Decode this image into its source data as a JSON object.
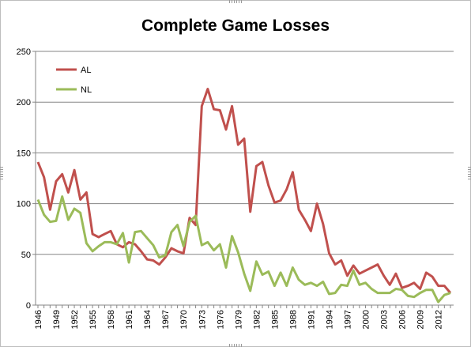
{
  "chart_data": {
    "type": "line",
    "title": "Complete Game Losses",
    "xlabel": "",
    "ylabel": "",
    "ylim": [
      0,
      250
    ],
    "yticks": [
      0,
      50,
      100,
      150,
      200,
      250
    ],
    "grid": true,
    "legend_position": "top-left",
    "x_start": 1946,
    "x_end": 2014,
    "x_tick_labels": [
      "1946",
      "1949",
      "1952",
      "1955",
      "1958",
      "1961",
      "1964",
      "1967",
      "1970",
      "1973",
      "1976",
      "1979",
      "1982",
      "1985",
      "1988",
      "1991",
      "1994",
      "1997",
      "2000",
      "2003",
      "2006",
      "2009",
      "2012"
    ],
    "series": [
      {
        "name": "AL",
        "color": "#C0504D",
        "values": [
          141,
          126,
          94,
          122,
          129,
          111,
          133,
          104,
          111,
          70,
          67,
          70,
          73,
          60,
          57,
          62,
          60,
          53,
          45,
          44,
          40,
          47,
          56,
          53,
          51,
          86,
          79,
          196,
          213,
          193,
          192,
          173,
          196,
          158,
          164,
          92,
          137,
          141,
          118,
          101,
          103,
          114,
          131,
          94,
          84,
          73,
          100,
          80,
          51,
          40,
          44,
          29,
          39,
          31,
          34,
          37,
          40,
          29,
          20,
          31,
          17,
          19,
          22,
          16,
          32,
          28,
          19,
          19,
          12
        ]
      },
      {
        "name": "NL",
        "color": "#9BBB59",
        "values": [
          104,
          89,
          82,
          83,
          107,
          84,
          95,
          91,
          61,
          53,
          58,
          62,
          62,
          60,
          71,
          42,
          72,
          73,
          66,
          59,
          47,
          49,
          72,
          79,
          58,
          82,
          88,
          59,
          62,
          54,
          60,
          37,
          68,
          52,
          31,
          14,
          43,
          30,
          33,
          19,
          32,
          19,
          37,
          25,
          20,
          22,
          19,
          23,
          11,
          12,
          20,
          19,
          34,
          20,
          22,
          16,
          12,
          12,
          12,
          16,
          15,
          9,
          8,
          12,
          15,
          15,
          3,
          10,
          12
        ]
      }
    ]
  }
}
